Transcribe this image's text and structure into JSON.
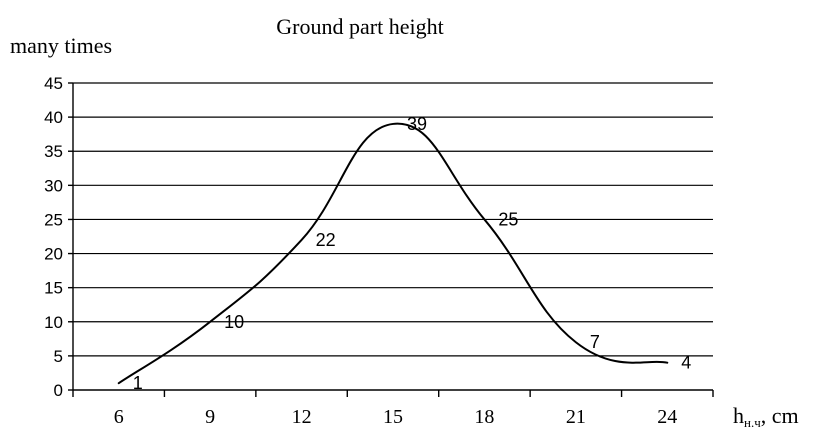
{
  "chart_data": {
    "type": "line",
    "title": "Ground part height",
    "ylabel": "many times",
    "xlabel": {
      "main": "h",
      "subscript": "н.ч",
      "unit": ", cm"
    },
    "x": [
      6,
      9,
      12,
      15,
      18,
      21,
      24
    ],
    "values": [
      1,
      10,
      22,
      39,
      25,
      7,
      4
    ],
    "data_labels": [
      "1",
      "10",
      "22",
      "39",
      "25",
      "7",
      "4"
    ],
    "x_ticks": [
      "6",
      "9",
      "12",
      "15",
      "18",
      "21",
      "24"
    ],
    "y_ticks": [
      "0",
      "5",
      "10",
      "15",
      "20",
      "25",
      "30",
      "35",
      "40",
      "45"
    ],
    "xlim": [
      4.5,
      25.5
    ],
    "ylim": [
      0,
      45
    ],
    "grid": "horizontal",
    "legend": "none",
    "smooth": true
  }
}
